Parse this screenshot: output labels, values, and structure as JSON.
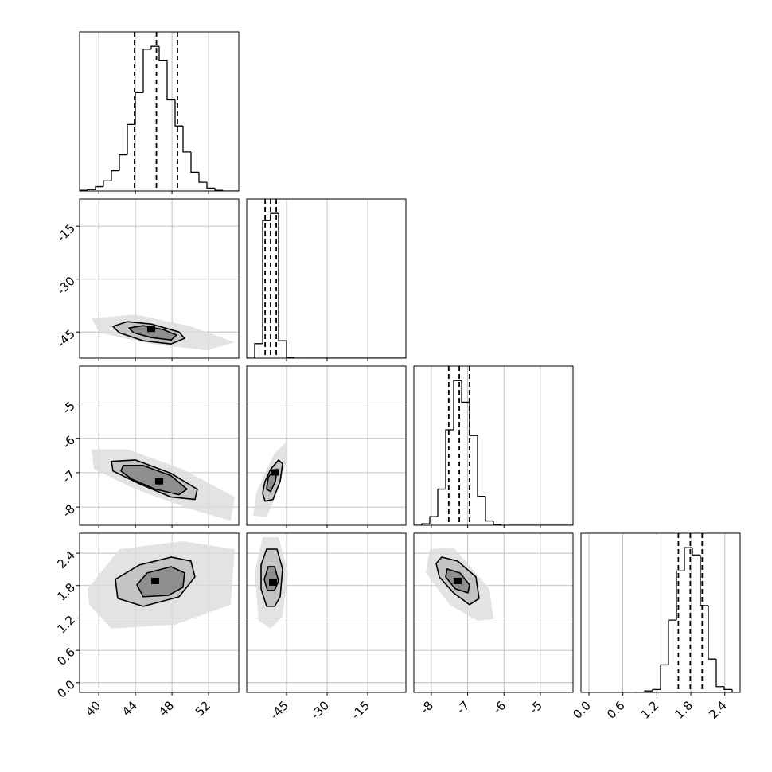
{
  "chart_data": {
    "type": "corner",
    "hist_ylim": [
      0,
      1.1
    ],
    "hist_color": "#000000",
    "grid_color": "#b0b0b0",
    "fill_colors": [
      "#dcdcdc",
      "#c4c4c4",
      "#8e8e8e"
    ],
    "line_color": "#000000",
    "peak_color": "#000000",
    "grid": true,
    "params": [
      {
        "xlim": [
          37.9,
          55.3
        ],
        "xticks": [
          40,
          44,
          48,
          52
        ]
      },
      {
        "xlim": [
          -59.7,
          -0.9
        ],
        "xticks": [
          -45,
          -30,
          -15
        ],
        "ylim": [
          -52.4,
          -7.3
        ],
        "yticks": [
          -45,
          -30,
          -15
        ]
      },
      {
        "xlim": [
          -8.48,
          -4.1
        ],
        "xticks": [
          -8,
          -7,
          -6,
          -5
        ],
        "ylim": [
          -8.53,
          -3.9
        ],
        "yticks": [
          -8,
          -7,
          -6,
          -5
        ]
      },
      {
        "xlim": [
          -0.14,
          2.67
        ],
        "xticks": [
          {
            "value": 0,
            "label": "0.0"
          },
          0.6,
          1.2,
          1.8,
          2.4
        ],
        "ylim": [
          -0.18,
          2.77
        ],
        "yticks": [
          {
            "value": 0,
            "label": "0.0"
          },
          0.6,
          1.2,
          1.8,
          2.4
        ]
      }
    ],
    "histograms": [
      {
        "bins": [
          37.9,
          38.77,
          39.64,
          40.51,
          41.38,
          42.25,
          43.12,
          43.99,
          44.86,
          45.73,
          46.6,
          47.47,
          48.34,
          49.21,
          50.08,
          50.95,
          51.82,
          52.69,
          53.56,
          54.43,
          55.3
        ],
        "counts": [
          0.005,
          0.01,
          0.03,
          0.07,
          0.14,
          0.25,
          0.46,
          0.68,
          0.98,
          1.0,
          0.9,
          0.63,
          0.45,
          0.27,
          0.13,
          0.06,
          0.02,
          0.005,
          0,
          0
        ],
        "quantiles": [
          43.9,
          46.3,
          48.6
        ]
      },
      {
        "bins": [
          -59.7,
          -56.76,
          -53.82,
          -50.88,
          -47.94,
          -45.0,
          -42.06,
          -39.12,
          -36.18,
          -33.24,
          -30.3,
          -27.36,
          -24.42,
          -21.48,
          -18.54,
          -15.6,
          -12.66,
          -9.72,
          -6.78,
          -3.84,
          -0.9
        ],
        "counts": [
          0,
          0.1,
          0.95,
          1.0,
          0.12,
          0.005,
          0,
          0,
          0,
          0,
          0,
          0,
          0,
          0,
          0,
          0,
          0,
          0,
          0,
          0
        ],
        "quantiles": [
          -52.9,
          -50.9,
          -48.8
        ]
      },
      {
        "bins": [
          -8.48,
          -8.261,
          -8.042,
          -7.823,
          -7.604,
          -7.385,
          -7.166,
          -6.947,
          -6.728,
          -6.509,
          -6.29,
          -6.071,
          -5.852,
          -5.633,
          -5.414,
          -5.195,
          -4.976,
          -4.757,
          -4.538,
          -4.319,
          -4.1
        ],
        "counts": [
          0,
          0.01,
          0.06,
          0.25,
          0.66,
          1.0,
          0.85,
          0.62,
          0.2,
          0.03,
          0.005,
          0,
          0,
          0,
          0,
          0,
          0,
          0,
          0,
          0
        ],
        "quantiles": [
          -7.52,
          -7.23,
          -6.95
        ]
      },
      {
        "bins": [
          -0.14,
          0.001,
          0.141,
          0.282,
          0.422,
          0.563,
          0.703,
          0.844,
          0.984,
          1.125,
          1.265,
          1.406,
          1.546,
          1.687,
          1.827,
          1.968,
          2.108,
          2.249,
          2.389,
          2.53,
          2.67
        ],
        "counts": [
          0,
          0,
          0,
          0,
          0,
          0,
          0,
          0.002,
          0.01,
          0.02,
          0.19,
          0.5,
          0.84,
          1.0,
          0.95,
          0.6,
          0.23,
          0.04,
          0.02,
          0
        ],
        "quantiles": [
          1.58,
          1.79,
          2.0
        ]
      }
    ],
    "panels": [
      {
        "cloud": {
          "x": [
            39.2,
            43.99,
            50.07,
            54.86,
            51.81,
            45.73,
            40.07
          ],
          "y": [
            -41.16,
            -40.03,
            -43.42,
            -47.93,
            -50.19,
            -48.38,
            -45.22
          ]
        },
        "contours": [
          {
            "x": [
              41.55,
              43.12,
              45.73,
              48.77,
              49.38,
              47.9,
              44.86,
              42.25
            ],
            "y": [
              -43.42,
              -42.06,
              -42.74,
              -45.0,
              -46.8,
              -48.38,
              -47.48,
              -45.22
            ]
          },
          {
            "x": [
              43.29,
              44.86,
              47.03,
              48.51,
              47.9,
              45.73,
              43.81
            ],
            "y": [
              -43.87,
              -43.19,
              -44.32,
              -45.9,
              -47.26,
              -46.58,
              -45.22
            ]
          }
        ],
        "peak": {
          "x": 45.73,
          "y": -44.1
        }
      },
      {
        "cloud": {
          "x": [
            39.2,
            43.12,
            49.2,
            54.86,
            54.42,
            50.07,
            43.99,
            39.47
          ],
          "y": [
            -6.32,
            -6.32,
            -6.9,
            -7.71,
            -8.4,
            -8.06,
            -7.48,
            -6.9
          ]
        },
        "contours": [
          {
            "x": [
              41.38,
              43.99,
              47.9,
              50.77,
              50.51,
              47.9,
              44.42,
              41.55
            ],
            "y": [
              -6.67,
              -6.63,
              -7.02,
              -7.48,
              -7.78,
              -7.71,
              -7.32,
              -6.95
            ]
          },
          {
            "x": [
              42.68,
              44.86,
              47.9,
              49.64,
              48.77,
              46.16,
              43.55,
              42.42
            ],
            "y": [
              -6.79,
              -6.79,
              -7.09,
              -7.48,
              -7.64,
              -7.48,
              -7.18,
              -6.95
            ]
          }
        ],
        "peak": {
          "x": 46.6,
          "y": -7.25
        }
      },
      {
        "cloud": {
          "x": [
            -49.41,
            -44.99,
            -44.99,
            -47.94,
            -52.35,
            -57.35,
            -56.17,
            -52.35
          ],
          "y": [
            -6.44,
            -6.09,
            -6.67,
            -7.48,
            -8.29,
            -8.25,
            -7.6,
            -6.9
          ]
        },
        "contours": [
          {
            "x": [
              -50.88,
              -47.94,
              -46.46,
              -47.35,
              -49.99,
              -52.94,
              -53.82,
              -52.94
            ],
            "y": [
              -6.9,
              -6.63,
              -6.74,
              -7.25,
              -7.78,
              -7.83,
              -7.6,
              -7.25
            ]
          },
          {
            "x": [
              -49.99,
              -48.52,
              -49.11,
              -50.88,
              -52.35,
              -51.76
            ],
            "y": [
              -6.95,
              -6.9,
              -7.25,
              -7.55,
              -7.48,
              -7.13
            ]
          }
        ],
        "peak": {
          "x": -49.41,
          "y": -6.99
        }
      },
      {
        "cloud": {
          "x": [
            38.77,
            42.25,
            49.2,
            54.86,
            54.42,
            48.33,
            41.38,
            38.94
          ],
          "y": [
            1.739,
            2.475,
            2.623,
            2.475,
            1.445,
            1.076,
            1.003,
            1.445
          ]
        },
        "contours": [
          {
            "x": [
              41.81,
              44.42,
              47.9,
              50.07,
              50.51,
              48.77,
              44.86,
              42.07
            ],
            "y": [
              1.916,
              2.181,
              2.328,
              2.255,
              1.96,
              1.592,
              1.415,
              1.562
            ]
          },
          {
            "x": [
              44.16,
              45.29,
              47.9,
              49.38,
              49.2,
              47.64,
              44.86
            ],
            "y": [
              1.813,
              2.034,
              2.151,
              2.034,
              1.769,
              1.621,
              1.592
            ]
          }
        ],
        "peak": {
          "x": 46.16,
          "y": 1.886
        }
      },
      {
        "cloud": {
          "x": [
            -53.82,
            -47.94,
            -44.41,
            -46.46,
            -50.88,
            -55.29,
            -56.76
          ],
          "y": [
            2.696,
            2.696,
            2.034,
            1.224,
            1.003,
            1.15,
            2.034
          ]
        },
        "contours": [
          {
            "x": [
              -52.35,
              -48.52,
              -46.46,
              -47.35,
              -49.41,
              -52.35,
              -54.41,
              -54.41
            ],
            "y": [
              2.475,
              2.475,
              2.107,
              1.592,
              1.415,
              1.415,
              1.739,
              2.181
            ]
          },
          {
            "x": [
              -51.76,
              -49.41,
              -47.94,
              -49.41,
              -52.06,
              -53.23
            ],
            "y": [
              2.151,
              2.151,
              1.886,
              1.71,
              1.71,
              1.916
            ]
          }
        ],
        "peak": {
          "x": -49.99,
          "y": 1.857
        }
      },
      {
        "cloud": {
          "x": [
            -8.042,
            -7.386,
            -6.401,
            -6.292,
            -6.73,
            -7.495,
            -8.152
          ],
          "y": [
            2.475,
            2.505,
            1.739,
            1.179,
            1.15,
            1.445,
            2.034
          ]
        },
        "contours": [
          {
            "x": [
              -7.714,
              -7.276,
              -6.773,
              -6.686,
              -6.948,
              -7.386,
              -7.78,
              -7.867
            ],
            "y": [
              2.328,
              2.255,
              1.96,
              1.562,
              1.445,
              1.665,
              1.96,
              2.21
            ]
          },
          {
            "x": [
              -7.561,
              -7.211,
              -6.948,
              -6.992,
              -7.342,
              -7.605
            ],
            "y": [
              2.107,
              2.034,
              1.813,
              1.665,
              1.739,
              1.96
            ]
          }
        ],
        "peak": {
          "x": -7.276,
          "y": 1.886
        }
      }
    ]
  }
}
